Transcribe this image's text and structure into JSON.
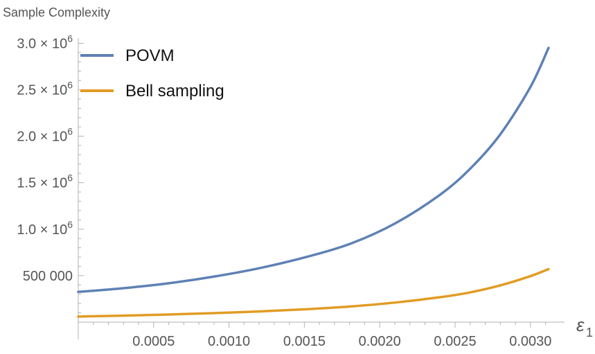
{
  "chart_data": {
    "type": "line",
    "ylabel": "Sample  Complexity",
    "xlabel": "ε",
    "xlabel_subscript": "1",
    "xlim": [
      0,
      0.00315
    ],
    "ylim": [
      0,
      3050000
    ],
    "x_ticks": [
      0.0005,
      0.001,
      0.0015,
      0.002,
      0.0025,
      0.003
    ],
    "x_tick_labels": [
      "0.0005",
      "0.0010",
      "0.0015",
      "0.0020",
      "0.0025",
      "0.0030"
    ],
    "y_ticks": [
      500000,
      1000000,
      1500000,
      2000000,
      2500000,
      3000000
    ],
    "y_tick_labels": [
      {
        "text": "500 000"
      },
      {
        "base": "1.0 × 10",
        "exp": "6"
      },
      {
        "base": "1.5 × 10",
        "exp": "6"
      },
      {
        "base": "2.0 × 10",
        "exp": "6"
      },
      {
        "base": "2.5 × 10",
        "exp": "6"
      },
      {
        "base": "3.0 × 10",
        "exp": "6"
      }
    ],
    "legend_position": "top-left",
    "series": [
      {
        "name": "POVM",
        "color": "#5e81b5",
        "x": [
          0,
          0.0003,
          0.0006,
          0.0009,
          0.0012,
          0.0015,
          0.0018,
          0.0021,
          0.0024,
          0.0026,
          0.0028,
          0.003,
          0.00312
        ],
        "values": [
          325000,
          365000,
          418000,
          490000,
          580000,
          695000,
          840000,
          1060000,
          1370000,
          1650000,
          2020000,
          2530000,
          2950000
        ]
      },
      {
        "name": "Bell sampling",
        "color": "#e19c24",
        "x": [
          0,
          0.0003,
          0.0006,
          0.0009,
          0.0012,
          0.0015,
          0.0018,
          0.0021,
          0.0024,
          0.0026,
          0.0028,
          0.003,
          0.00312
        ],
        "values": [
          60000,
          70000,
          82000,
          97000,
          115000,
          138000,
          168000,
          210000,
          268000,
          320000,
          395000,
          495000,
          570000
        ]
      }
    ]
  }
}
